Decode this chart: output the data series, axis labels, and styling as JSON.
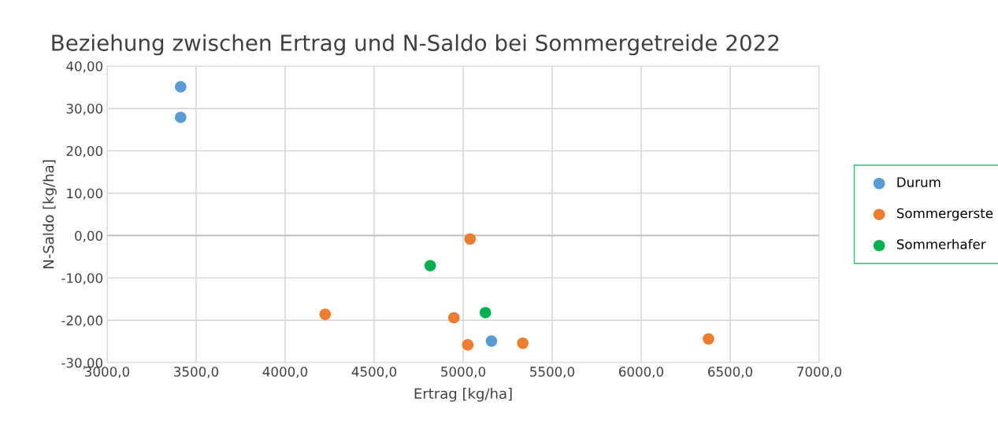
{
  "chart_data": {
    "type": "scatter",
    "title": "Beziehung zwischen Ertrag und N-Saldo bei Sommergetreide 2022",
    "xlabel": "Ertrag [kg/ha]",
    "ylabel": "N-Saldo [kg/ha]",
    "series": [
      {
        "name": "Durum",
        "color": "#5b9bd5",
        "x": [
          3413,
          3413,
          5159
        ],
        "values": [
          35.1,
          27.9,
          -24.9
        ]
      },
      {
        "name": "Sommergerste",
        "color": "#ed7d31",
        "x": [
          5039,
          4225,
          4948,
          5026,
          5335,
          6378
        ],
        "values": [
          -0.8,
          -18.6,
          -19.4,
          -25.8,
          -25.4,
          -24.4
        ]
      },
      {
        "name": "Sommerhafer",
        "color": "#00b050",
        "x": [
          4815,
          5125
        ],
        "values": [
          -7.1,
          -18.2
        ]
      }
    ],
    "xlim": [
      3000,
      7000
    ],
    "xticks": [
      {
        "value": 3000,
        "label": "3000,0"
      },
      {
        "value": 3500,
        "label": "3500,0"
      },
      {
        "value": 4000,
        "label": "4000,0"
      },
      {
        "value": 4500,
        "label": "4500,0"
      },
      {
        "value": 5000,
        "label": "5000,0"
      },
      {
        "value": 5500,
        "label": "5500,0"
      },
      {
        "value": 6000,
        "label": "6000,0"
      },
      {
        "value": 6500,
        "label": "6500,0"
      },
      {
        "value": 7000,
        "label": "7000,0"
      }
    ],
    "ylim": [
      -30,
      40
    ],
    "yticks": [
      {
        "value": -30,
        "label": "-30,00"
      },
      {
        "value": -20,
        "label": "-20,00"
      },
      {
        "value": -10,
        "label": "-10,00"
      },
      {
        "value": 0,
        "label": "0,00"
      },
      {
        "value": 10,
        "label": "10,00"
      },
      {
        "value": 20,
        "label": "20,00"
      },
      {
        "value": 30,
        "label": "30,00"
      },
      {
        "value": 40,
        "label": "40,00"
      }
    ],
    "grid": true,
    "legend": "right",
    "marker": "circle"
  }
}
